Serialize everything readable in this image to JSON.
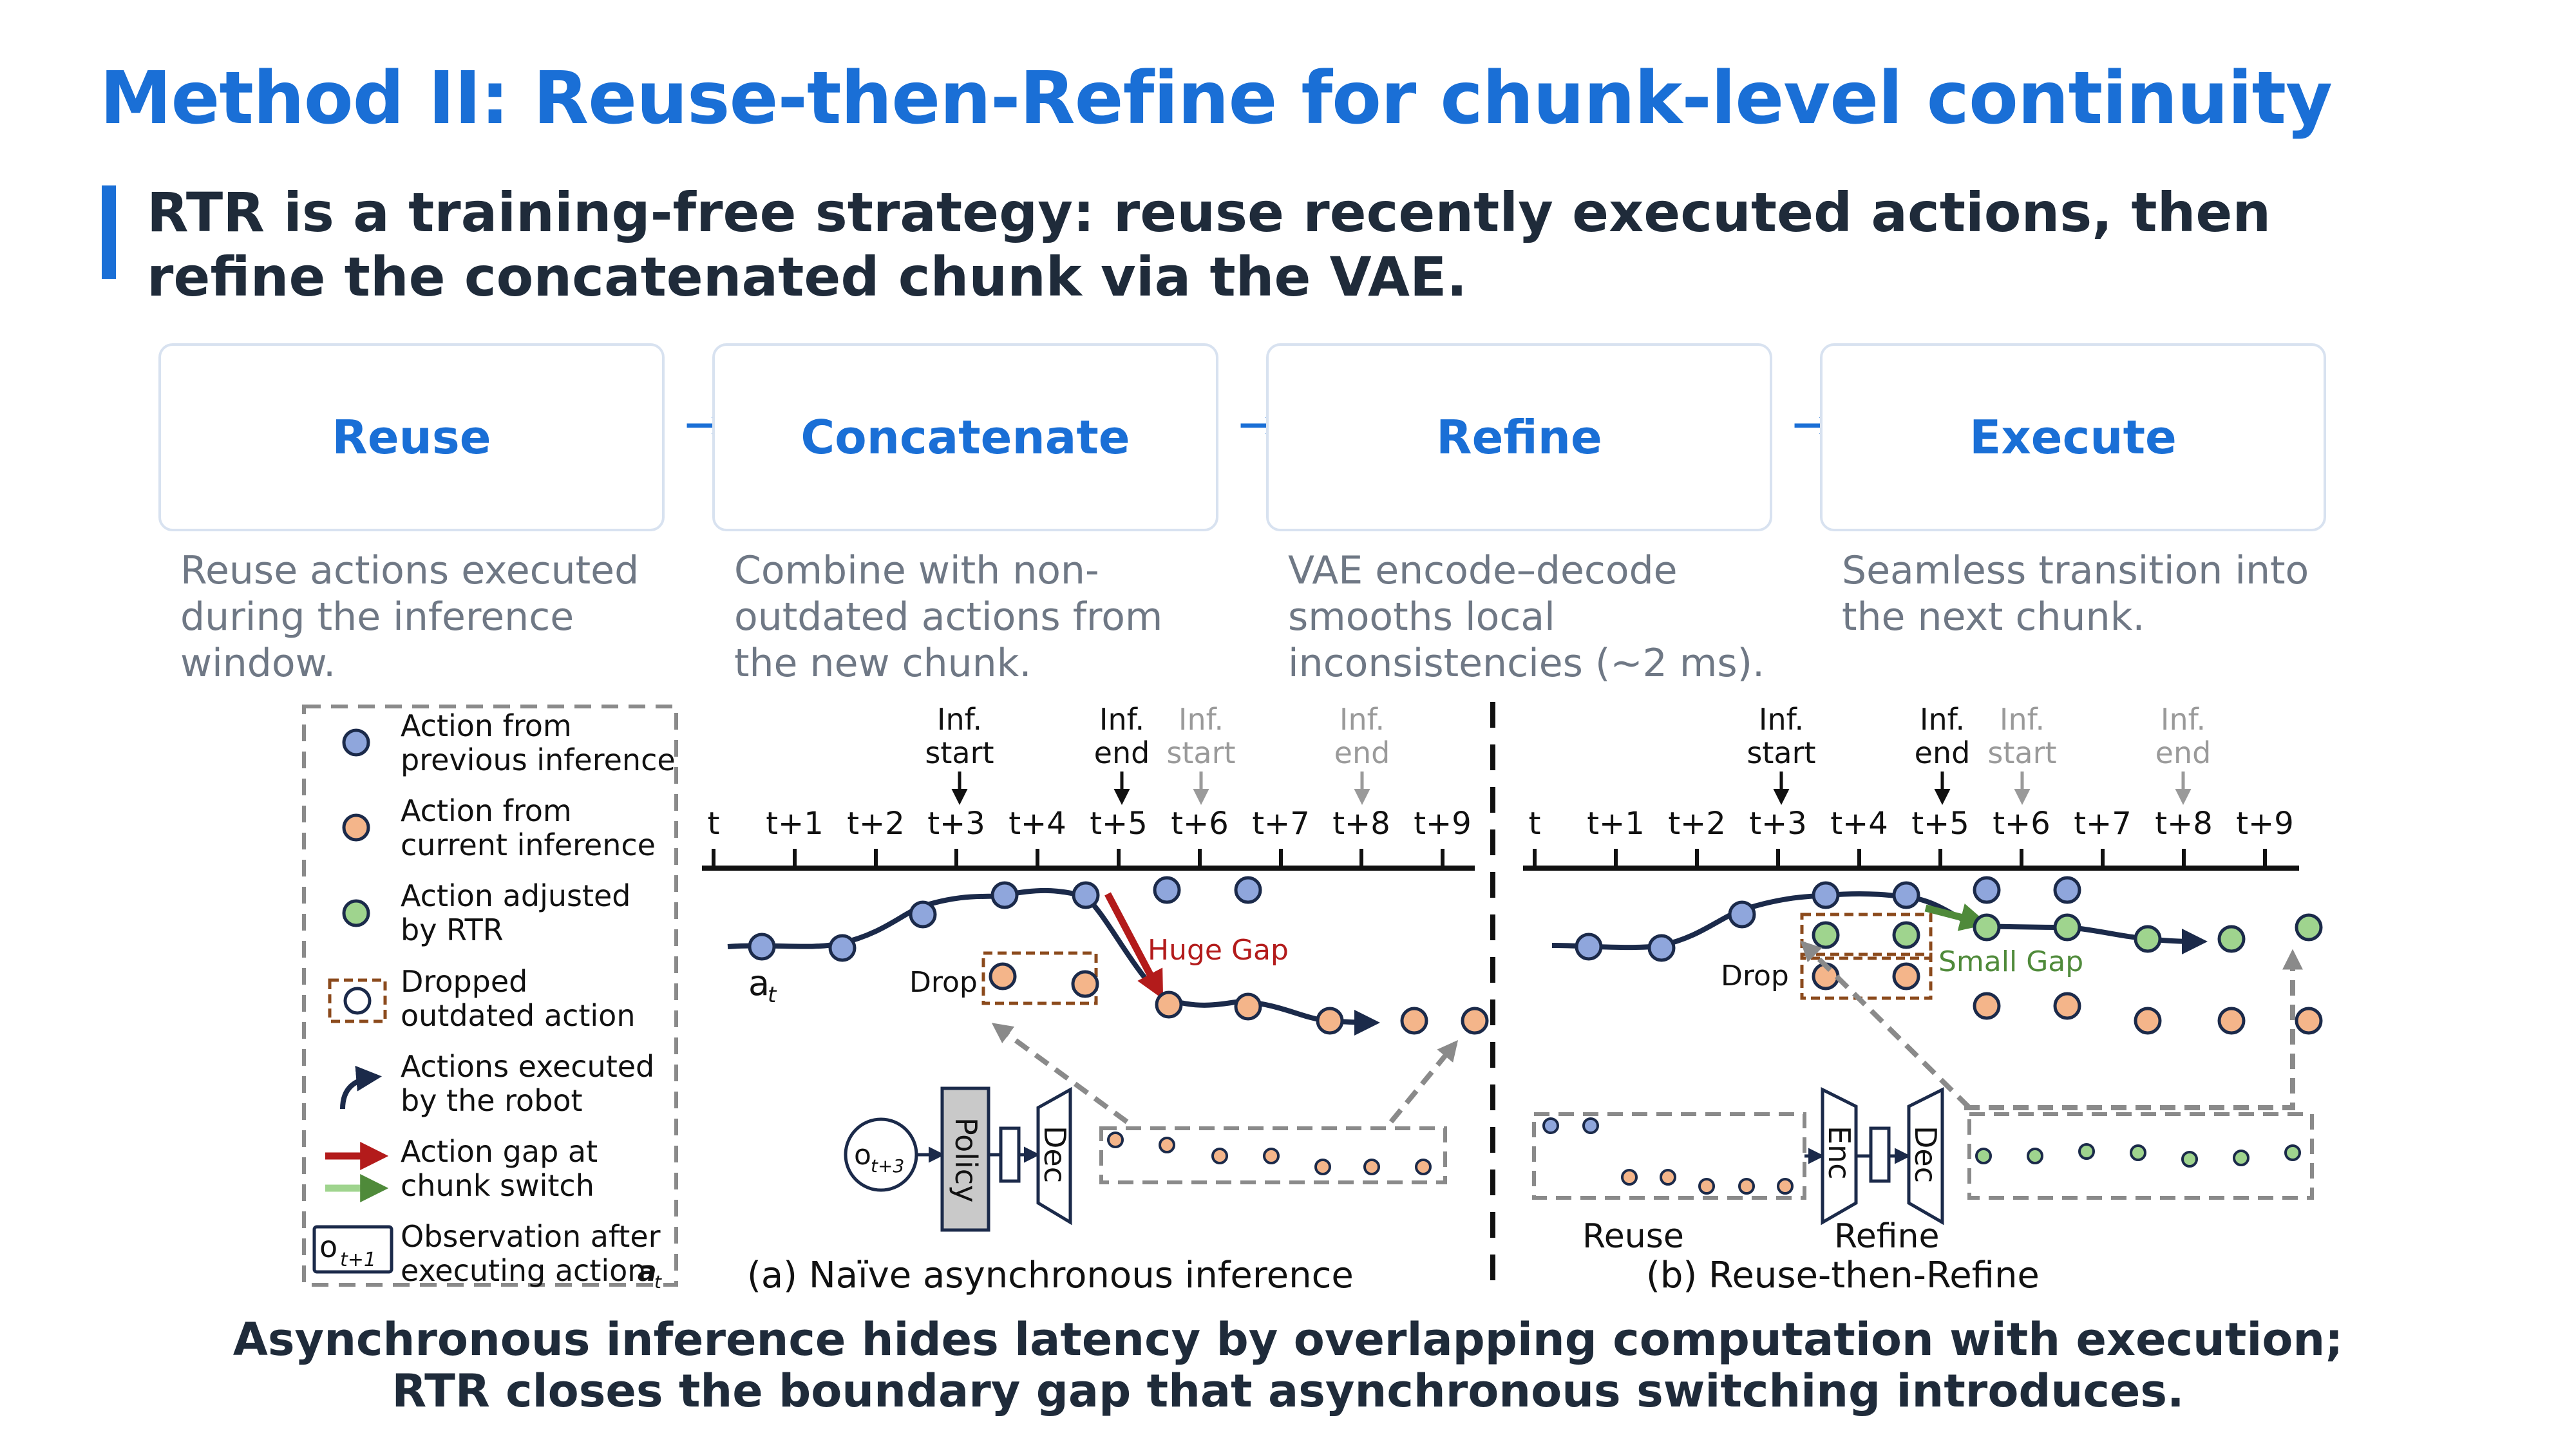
{
  "title": "Method II: Reuse-then-Refine for chunk-level continuity",
  "subtitle": "RTR is a training-free strategy: reuse recently executed actions, then refine the concatenated chunk via the VAE.",
  "steps": [
    {
      "label": "Reuse",
      "desc": "Reuse actions executed during the inference window."
    },
    {
      "label": "Concatenate",
      "desc": "Combine with non-outdated actions from the new chunk."
    },
    {
      "label": "Refine",
      "desc": "VAE encode–decode smooths local inconsistencies (~2 ms)."
    },
    {
      "label": "Execute",
      "desc": "Seamless transition into the next chunk."
    }
  ],
  "step_arrow": "→",
  "legend": {
    "prev_line1": "Action from",
    "prev_line2": "previous inference",
    "curr_line1": "Action from",
    "curr_line2": "current inference",
    "adj_line1": "Action adjusted",
    "adj_line2": "by RTR",
    "drop_line1": "Dropped",
    "drop_line2": "outdated action",
    "exec_line1": "Actions executed",
    "exec_line2": "by the robot",
    "gap_line1": "Action gap at",
    "gap_line2": "chunk switch",
    "obs_line1": "Observation after",
    "obs_line2": "executing action",
    "obs_symbol": "o",
    "obs_sub": "t+1",
    "obs_action": "a",
    "obs_action_sub": "t"
  },
  "timeline_ticks": [
    "t",
    "t+1",
    "t+2",
    "t+3",
    "t+4",
    "t+5",
    "t+6",
    "t+7",
    "t+8",
    "t+9"
  ],
  "markers": {
    "inf": "Inf.",
    "start": "start",
    "end": "end"
  },
  "panel_a": {
    "drop": "Drop",
    "gap": "Huge Gap",
    "a_t": "a",
    "a_t_sub": "t",
    "obs": "o",
    "obs_sub": "t+3",
    "policy": "Policy",
    "dec": "Dec",
    "caption": "(a) Naïve asynchronous inference"
  },
  "panel_b": {
    "drop": "Drop",
    "gap": "Small Gap",
    "enc": "Enc",
    "dec": "Dec",
    "reuse": "Reuse",
    "refine": "Refine",
    "caption": "(b) Reuse-then-Refine"
  },
  "bottom_caption": "Asynchronous inference hides latency by overlapping computation with execution; RTR closes the boundary gap that asynchronous switching introduces.",
  "colors": {
    "accent": "#1a6fd6",
    "prev": "#8fa6dc",
    "curr": "#f4b58a",
    "adj": "#9fd48e",
    "gap_red": "#b31b1b",
    "gap_green": "#4f8a3a",
    "navy": "#1b2a4a"
  }
}
